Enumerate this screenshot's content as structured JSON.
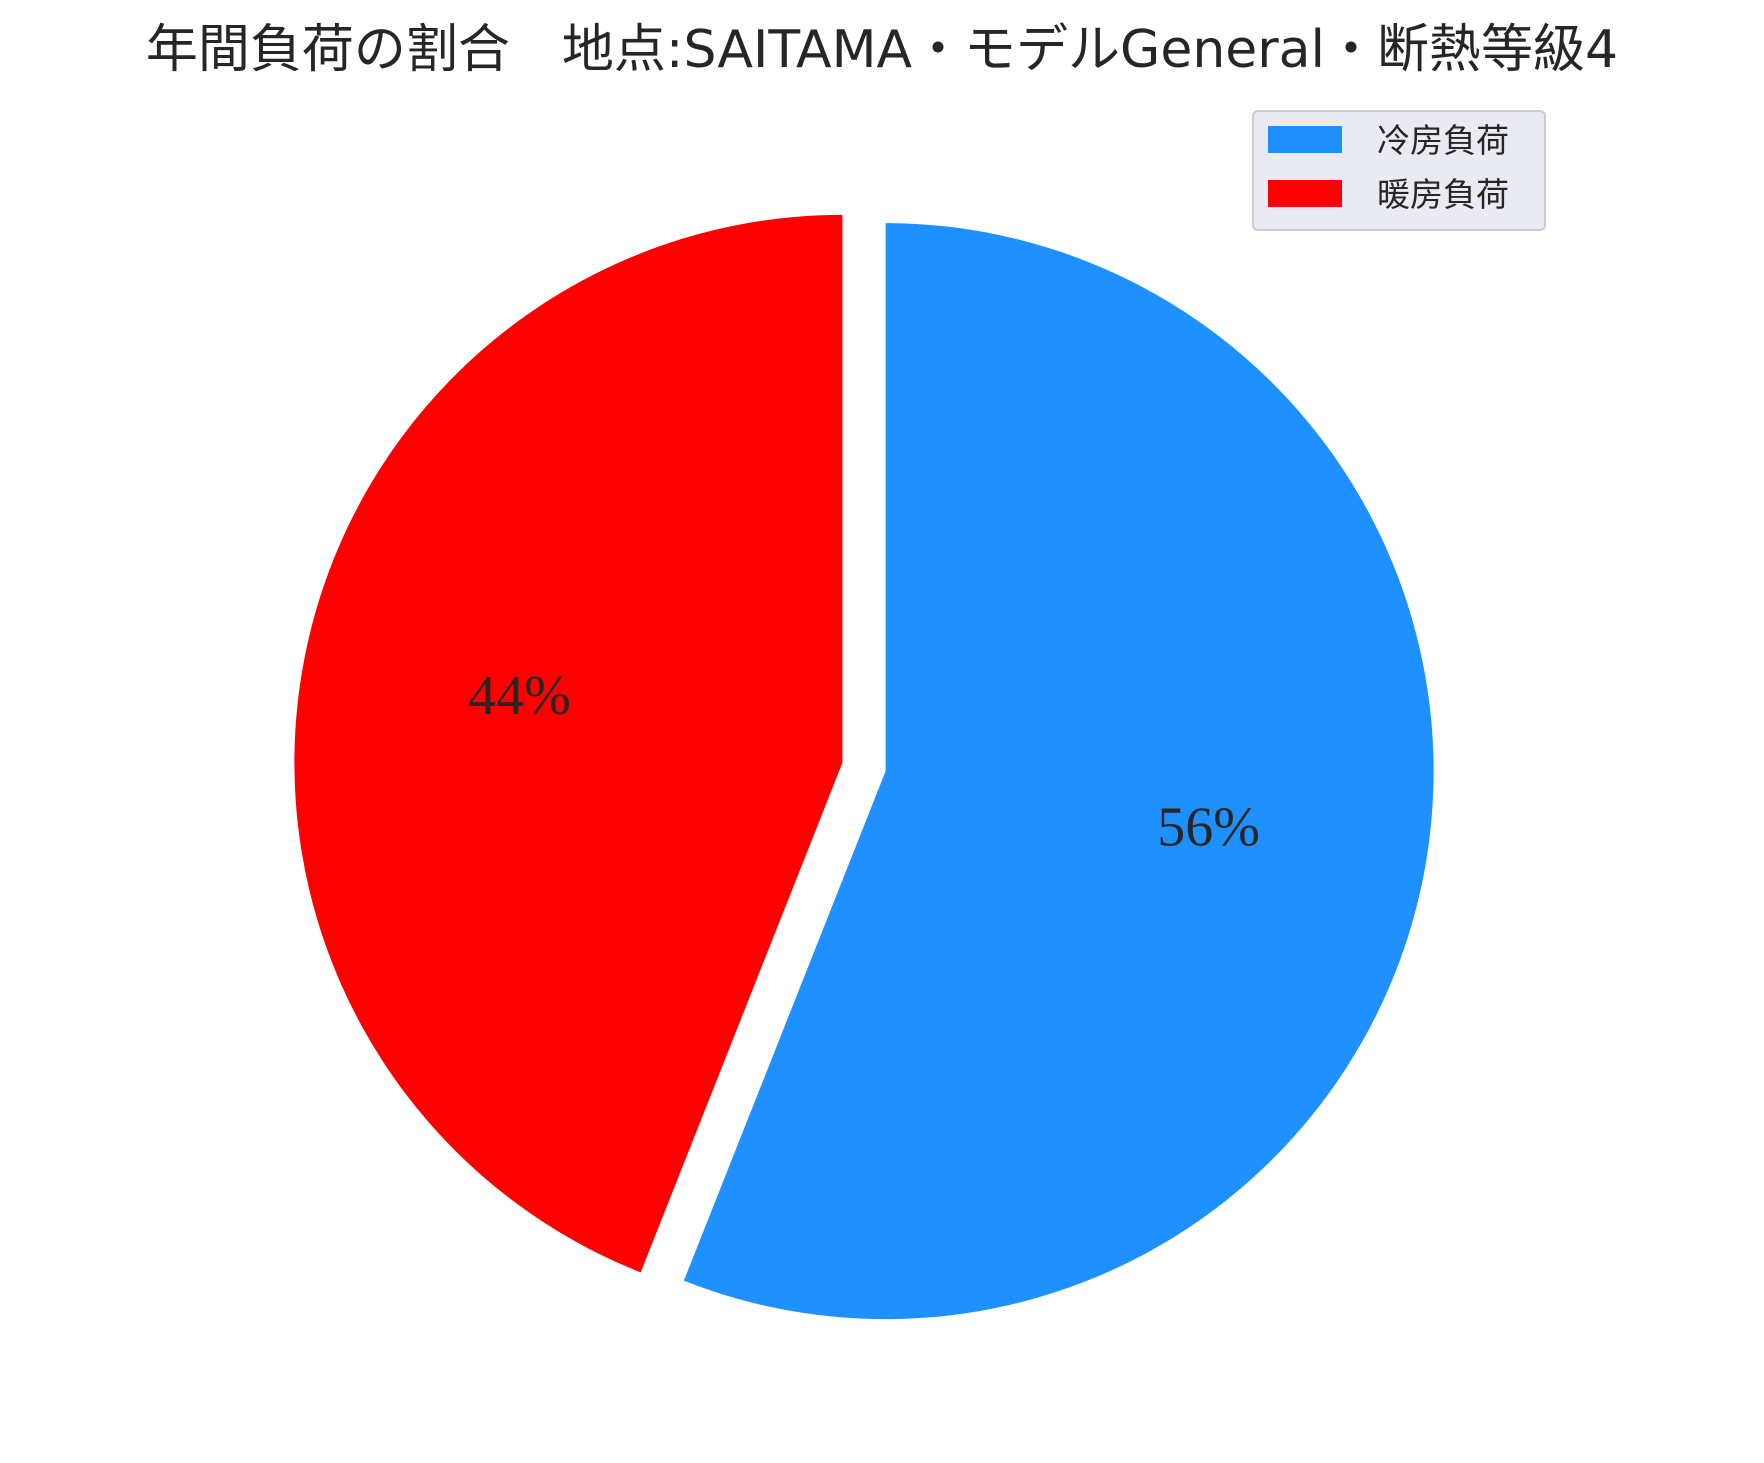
{
  "chart_data": {
    "type": "pie",
    "title": "年間負荷の割合　地点:SAITAMA・モデルGeneral・断熱等級4",
    "categories": [
      "冷房負荷",
      "暖房負荷"
    ],
    "values": [
      56,
      44
    ],
    "labels": [
      "56%",
      "44%"
    ],
    "colors": [
      "#1f90ff",
      "#ff0000"
    ],
    "start_angle_deg": 90,
    "direction": "clockwise",
    "exploded": true,
    "legend": {
      "placement": "top-right",
      "entries": [
        "冷房負荷",
        "暖房負荷"
      ]
    }
  }
}
